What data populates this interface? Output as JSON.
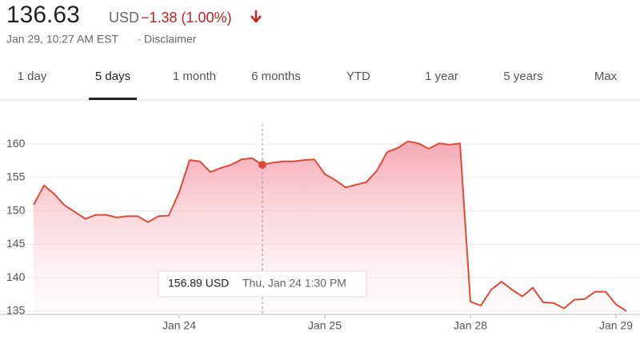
{
  "header": {
    "price": "136.63",
    "currency": "USD",
    "change": "−1.38 (1.00%)",
    "timestamp": "Jan 29, 10:27 AM EST",
    "disclaimer": "Disclaimer"
  },
  "tabs": [
    "1 day",
    "5 days",
    "1 month",
    "6 months",
    "YTD",
    "1 year",
    "5 years",
    "Max"
  ],
  "active_tab": 1,
  "tooltip": {
    "price": "156.89 USD",
    "time": "Thu, Jan 24 1:30 PM"
  },
  "chart_data": {
    "type": "line",
    "categories": [
      null,
      null,
      null,
      null,
      null,
      null,
      null,
      null,
      null,
      null,
      null,
      null,
      null,
      null,
      "Jan 24",
      null,
      null,
      null,
      null,
      null,
      null,
      null,
      null,
      null,
      null,
      null,
      null,
      null,
      "Jan 25",
      null,
      null,
      null,
      null,
      null,
      null,
      null,
      null,
      null,
      null,
      null,
      null,
      null,
      "Jan 28",
      null,
      null,
      null,
      null,
      null,
      null,
      null,
      null,
      null,
      null,
      null,
      null,
      null,
      "Jan 29",
      null
    ],
    "series": [
      {
        "color": "#dd4b39",
        "values": [
          150.9,
          153.8,
          152.5,
          150.8,
          149.8,
          148.8,
          149.4,
          149.4,
          149.0,
          149.2,
          149.2,
          148.3,
          149.2,
          149.3,
          152.8,
          157.6,
          157.4,
          155.8,
          156.4,
          156.9,
          157.7,
          157.9,
          156.89,
          157.2,
          157.4,
          157.4,
          157.6,
          157.7,
          155.5,
          154.6,
          153.5,
          153.9,
          154.3,
          156.0,
          158.8,
          159.4,
          160.4,
          160.1,
          159.3,
          160.1,
          159.9,
          160.1,
          136.4,
          135.8,
          138.2,
          139.4,
          138.2,
          137.2,
          138.5,
          136.3,
          136.2,
          135.4,
          136.7,
          136.8,
          137.9,
          137.9,
          136.0,
          135.0
        ]
      }
    ],
    "ylim": [
      134.5,
      163
    ],
    "yticks": [
      135,
      140,
      145,
      150,
      155,
      160
    ],
    "grid": true,
    "highlight_index": 22
  }
}
